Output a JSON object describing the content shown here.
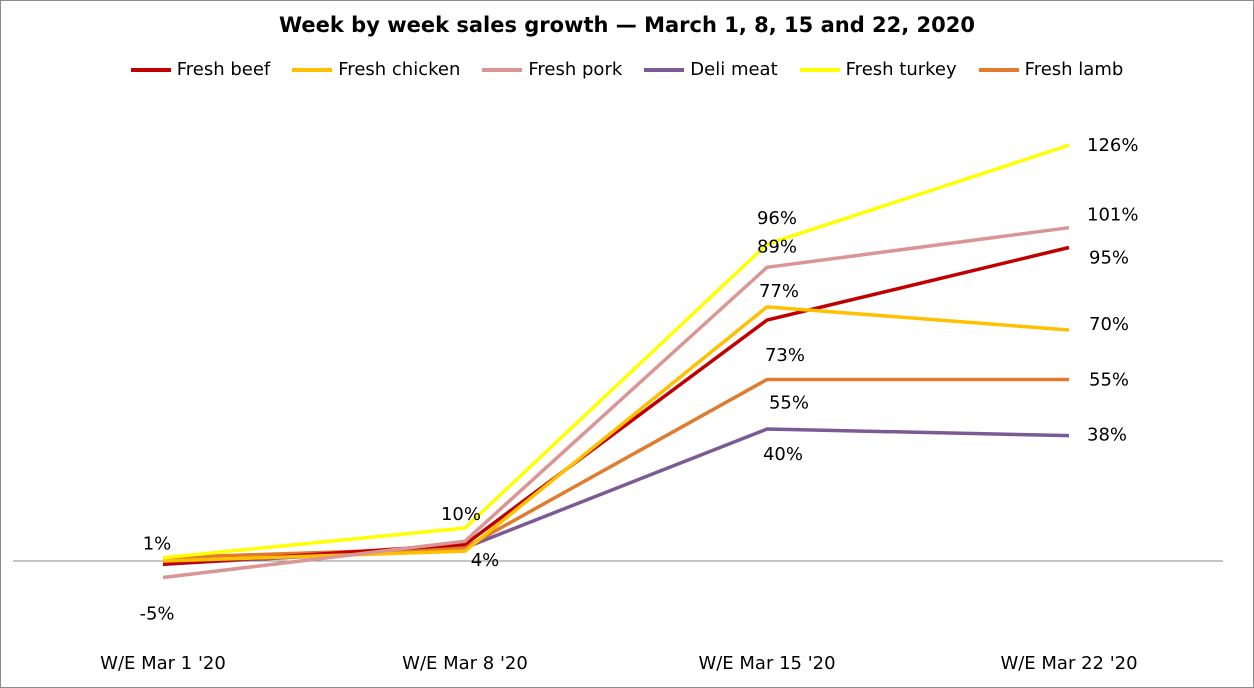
{
  "chart_data": {
    "type": "line",
    "title": "Week by week sales growth — March 1, 8, 15 and 22, 2020",
    "xlabel": "",
    "ylabel": "",
    "categories": [
      "W/E Mar 1 '20",
      "W/E Mar 8 '20",
      "W/E Mar 15 '20",
      "W/E Mar 22 '20"
    ],
    "y_unit": "%",
    "ylim": [
      -25,
      140
    ],
    "grid": false,
    "legend_position": "top",
    "series": [
      {
        "name": "Fresh beef",
        "color": "#c00000",
        "values": [
          -1,
          5,
          73,
          95
        ]
      },
      {
        "name": "Fresh chicken",
        "color": "#ffc000",
        "values": [
          0,
          3,
          77,
          70
        ]
      },
      {
        "name": "Fresh pork",
        "color": "#d99694",
        "values": [
          -5,
          6,
          89,
          101
        ]
      },
      {
        "name": "Deli meat",
        "color": "#7b5a96",
        "values": [
          -1,
          4,
          40,
          38
        ]
      },
      {
        "name": "Fresh turkey",
        "color": "#ffff00",
        "values": [
          1,
          10,
          96,
          126
        ]
      },
      {
        "name": "Fresh lamb",
        "color": "#e07b30",
        "values": [
          1,
          4,
          55,
          55
        ]
      }
    ],
    "annotations": [
      {
        "text": "1%",
        "category": 0,
        "value": 1
      },
      {
        "text": "-5%",
        "category": 0,
        "value": -5
      },
      {
        "text": "10%",
        "category": 1,
        "value": 10
      },
      {
        "text": "4%",
        "category": 1,
        "value": 4
      },
      {
        "text": "96%",
        "category": 2,
        "value": 96
      },
      {
        "text": "89%",
        "category": 2,
        "value": 89
      },
      {
        "text": "77%",
        "category": 2,
        "value": 77
      },
      {
        "text": "73%",
        "category": 2,
        "value": 73
      },
      {
        "text": "55%",
        "category": 2,
        "value": 55
      },
      {
        "text": "40%",
        "category": 2,
        "value": 40
      },
      {
        "text": "126%",
        "category": 3,
        "value": 126
      },
      {
        "text": "101%",
        "category": 3,
        "value": 101
      },
      {
        "text": "95%",
        "category": 3,
        "value": 95
      },
      {
        "text": "70%",
        "category": 3,
        "value": 70
      },
      {
        "text": "55%",
        "category": 3,
        "value": 55
      },
      {
        "text": "38%",
        "category": 3,
        "value": 38
      }
    ]
  }
}
